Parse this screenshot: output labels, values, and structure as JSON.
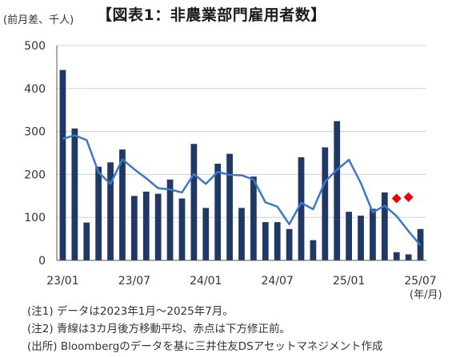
{
  "header": {
    "unit_label": "(前月差、千人)",
    "title": "【図表1：非農業部門雇用者数】"
  },
  "chart_data": {
    "type": "bar",
    "x_unit_label": "(年/月)",
    "ylim": [
      0,
      500
    ],
    "yticks": [
      0,
      100,
      200,
      300,
      400,
      500
    ],
    "xtick_labels": [
      {
        "index": 0,
        "label": "23/01"
      },
      {
        "index": 6,
        "label": "23/07"
      },
      {
        "index": 12,
        "label": "24/01"
      },
      {
        "index": 18,
        "label": "24/07"
      },
      {
        "index": 24,
        "label": "25/01"
      },
      {
        "index": 30,
        "label": "25/07"
      }
    ],
    "categories": [
      "23/01",
      "23/02",
      "23/03",
      "23/04",
      "23/05",
      "23/06",
      "23/07",
      "23/08",
      "23/09",
      "23/10",
      "23/11",
      "23/12",
      "24/01",
      "24/02",
      "24/03",
      "24/04",
      "24/05",
      "24/06",
      "24/07",
      "24/08",
      "24/09",
      "24/10",
      "24/11",
      "24/12",
      "25/01",
      "25/02",
      "25/03",
      "25/04",
      "25/05",
      "25/06",
      "25/07"
    ],
    "series": [
      {
        "type": "bar",
        "color": "#1f3864",
        "values": [
          443,
          307,
          88,
          218,
          228,
          258,
          150,
          160,
          155,
          188,
          144,
          271,
          122,
          225,
          248,
          122,
          195,
          89,
          89,
          73,
          240,
          47,
          263,
          324,
          113,
          104,
          120,
          158,
          19,
          14,
          73
        ]
      },
      {
        "type": "line",
        "color": "#3a78c8",
        "values": [
          283,
          291,
          280,
          205,
          178,
          235,
          212,
          191,
          168,
          165,
          158,
          201,
          178,
          206,
          199,
          198,
          188,
          135,
          125,
          84,
          134,
          119,
          183,
          211,
          234,
          180,
          112,
          127,
          103,
          68,
          35
        ]
      },
      {
        "type": "scatter",
        "marker": "diamond",
        "color": "#ee0000",
        "points": [
          {
            "index": 28,
            "value": 144
          },
          {
            "index": 29,
            "value": 147
          }
        ]
      }
    ]
  },
  "notes": [
    "(注1) データは2023年1月～2025年7月。",
    "(注2) 青線は3カ月後方移動平均、赤点は下方修正前。",
    "(出所) Bloombergのデータを基に三井住友DSアセットマネジメント作成"
  ]
}
